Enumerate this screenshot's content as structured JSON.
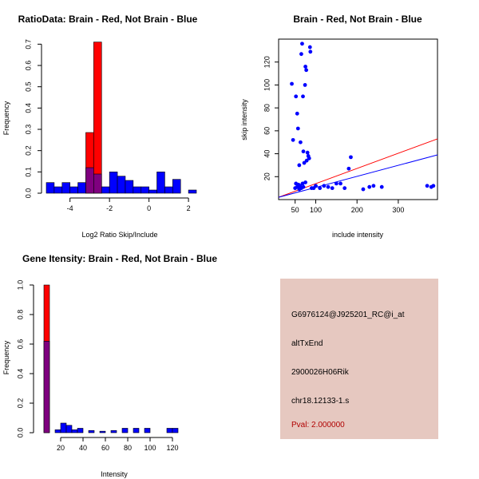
{
  "colors": {
    "red": "#ff0000",
    "blue": "#0000ff",
    "overlap": "#7f007f",
    "info_bg": "#e6c8c0",
    "pval": "#b00000"
  },
  "chart_data": [
    {
      "type": "histogram",
      "title": "RatioData: Brain - Red, Not Brain - Blue",
      "xlabel": "Log2 Ratio Skip/Include",
      "ylabel": "Frequency",
      "xlim": [
        -5.2,
        2.4
      ],
      "ylim": [
        0,
        0.75
      ],
      "x_ticks": [
        -4,
        -2,
        0,
        2
      ],
      "x_tick_labels": [
        "-4",
        "-2",
        "0",
        "2"
      ],
      "y_ticks": [
        0,
        0.1,
        0.2,
        0.3,
        0.4,
        0.5,
        0.6,
        0.7
      ],
      "y_tick_labels": [
        "0.0",
        "0.1",
        "0.2",
        "0.3",
        "0.4",
        "0.5",
        "0.6",
        "0.7"
      ],
      "bin_width": 0.4,
      "series": [
        {
          "name": "Not Brain",
          "color": "blue",
          "bins": [
            -5.2,
            -4.8,
            -4.4,
            -4.0,
            -3.6,
            -3.2,
            -2.8,
            -2.4,
            -2.0,
            -1.6,
            -1.2,
            -0.8,
            -0.4,
            0.0,
            0.4,
            0.8,
            1.2,
            1.6,
            2.0
          ],
          "values": [
            0.05,
            0.03,
            0.05,
            0.03,
            0.05,
            0.12,
            0.09,
            0.03,
            0.1,
            0.08,
            0.06,
            0.03,
            0.03,
            0.015,
            0.1,
            0.03,
            0.065,
            0,
            0.015
          ]
        },
        {
          "name": "Brain",
          "color": "red",
          "bins": [
            -3.2,
            -2.8
          ],
          "values": [
            0.285,
            0.71
          ]
        }
      ]
    },
    {
      "type": "scatter",
      "title": "Brain - Red, Not Brain - Blue",
      "xlabel": "include intensity",
      "ylabel": "skip intensity",
      "xlim": [
        10,
        395
      ],
      "ylim": [
        0,
        140
      ],
      "x_ticks": [
        50,
        100,
        200,
        300
      ],
      "x_tick_labels": [
        "50",
        "100",
        "200",
        "300"
      ],
      "y_ticks": [
        20,
        40,
        60,
        80,
        100,
        120
      ],
      "y_tick_labels": [
        "20",
        "40",
        "60",
        "80",
        "100",
        "120"
      ],
      "points": [
        [
          42,
          101
        ],
        [
          45,
          52
        ],
        [
          52,
          90
        ],
        [
          55,
          75
        ],
        [
          57,
          62
        ],
        [
          60,
          30
        ],
        [
          63,
          50
        ],
        [
          65,
          127
        ],
        [
          67,
          136
        ],
        [
          69,
          90
        ],
        [
          70,
          42
        ],
        [
          72,
          32
        ],
        [
          74,
          100
        ],
        [
          75,
          116
        ],
        [
          77,
          113
        ],
        [
          78,
          34
        ],
        [
          80,
          41
        ],
        [
          82,
          38
        ],
        [
          84,
          36
        ],
        [
          86,
          133
        ],
        [
          87,
          129
        ],
        [
          90,
          10
        ],
        [
          95,
          10
        ],
        [
          100,
          12
        ],
        [
          110,
          10
        ],
        [
          120,
          12
        ],
        [
          130,
          11
        ],
        [
          140,
          10
        ],
        [
          150,
          14
        ],
        [
          160,
          14
        ],
        [
          170,
          10
        ],
        [
          180,
          27
        ],
        [
          185,
          37
        ],
        [
          215,
          9
        ],
        [
          230,
          11
        ],
        [
          240,
          12
        ],
        [
          260,
          11
        ],
        [
          370,
          12
        ],
        [
          380,
          11
        ],
        [
          385,
          12
        ],
        [
          50,
          10
        ],
        [
          52,
          14
        ],
        [
          55,
          11
        ],
        [
          58,
          13
        ],
        [
          60,
          9
        ],
        [
          62,
          12
        ],
        [
          65,
          10
        ],
        [
          68,
          14
        ],
        [
          70,
          11
        ],
        [
          75,
          15
        ]
      ],
      "lines": [
        {
          "name": "Brain fit",
          "color": "red",
          "x": [
            10,
            395
          ],
          "y": [
            2,
            53
          ]
        },
        {
          "name": "Not Brain fit",
          "color": "blue",
          "x": [
            10,
            395
          ],
          "y": [
            2,
            39
          ]
        }
      ]
    },
    {
      "type": "histogram",
      "title": "Gene Itensity: Brain - Red, Not Brain - Blue",
      "xlabel": "Intensity",
      "ylabel": "Frequency",
      "xlim": [
        0,
        140
      ],
      "ylim": [
        0,
        1.0
      ],
      "x_ticks": [
        20,
        40,
        60,
        80,
        100,
        120
      ],
      "x_tick_labels": [
        "20",
        "40",
        "60",
        "80",
        "100",
        "120"
      ],
      "y_ticks": [
        0,
        0.2,
        0.4,
        0.6,
        0.8,
        1.0
      ],
      "y_tick_labels": [
        "0.0",
        "0.2",
        "0.4",
        "0.6",
        "0.8",
        "1.0"
      ],
      "bin_width": 5,
      "series": [
        {
          "name": "Not Brain",
          "color": "blue",
          "bins": [
            0,
            5,
            10,
            15,
            20,
            25,
            30,
            35,
            40,
            45,
            50,
            55,
            60,
            65,
            70,
            75,
            80,
            85,
            90,
            95,
            100,
            105,
            110,
            115,
            120,
            125,
            130
          ],
          "values": [
            0,
            0.62,
            0,
            0.02,
            0.065,
            0.05,
            0.02,
            0.03,
            0,
            0.015,
            0,
            0.01,
            0,
            0.015,
            0,
            0.03,
            0,
            0.03,
            0,
            0.03,
            0,
            0,
            0,
            0.03,
            0.03,
            0,
            0
          ]
        },
        {
          "name": "Brain",
          "color": "red",
          "bins": [
            5
          ],
          "values": [
            1.0
          ]
        }
      ]
    }
  ],
  "info_panel": {
    "probe_id": "G6976124@J925201_RC@i_at",
    "event_type": "altTxEnd",
    "gene": "2900026H06Rik",
    "location": "chr18.12133-1.s",
    "pval": "Pval: 2.000000"
  }
}
